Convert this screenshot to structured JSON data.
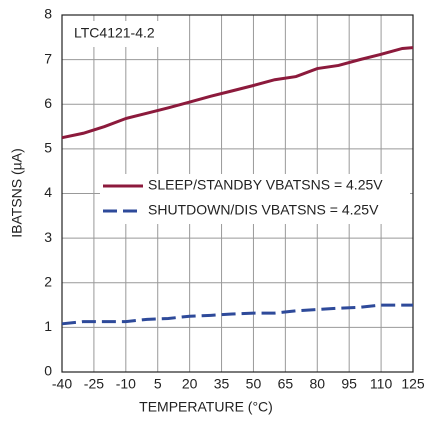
{
  "chart_data": {
    "type": "line",
    "annotation": "LTC4121-4.2",
    "xlabel": "TEMPERATURE (°C)",
    "ylabel": "IBATSNS (µA)",
    "x": [
      -40,
      -30,
      -20,
      -10,
      0,
      10,
      20,
      30,
      40,
      50,
      60,
      70,
      80,
      90,
      100,
      110,
      120,
      125
    ],
    "series": [
      {
        "name": "SLEEP/STANDBY VBATSNS = 4.25V",
        "color": "#8c1a3c",
        "dashed": false,
        "values": [
          5.25,
          5.35,
          5.5,
          5.68,
          5.8,
          5.92,
          6.05,
          6.18,
          6.3,
          6.42,
          6.55,
          6.62,
          6.8,
          6.87,
          7.0,
          7.12,
          7.25,
          7.27
        ]
      },
      {
        "name": "SHUTDOWN/DIS VBATSNS = 4.25V",
        "color": "#2e4a9a",
        "dashed": true,
        "values": [
          1.08,
          1.13,
          1.13,
          1.13,
          1.18,
          1.2,
          1.25,
          1.27,
          1.3,
          1.32,
          1.32,
          1.37,
          1.4,
          1.43,
          1.45,
          1.5,
          1.5,
          1.5
        ]
      }
    ],
    "xlim": [
      -40,
      125
    ],
    "xticks": [
      -40,
      -25,
      -10,
      5,
      20,
      35,
      50,
      65,
      80,
      95,
      110,
      125
    ],
    "ylim": [
      0,
      8
    ],
    "yticks": [
      0,
      1,
      2,
      3,
      4,
      5,
      6,
      7,
      8
    ],
    "grid": true
  }
}
